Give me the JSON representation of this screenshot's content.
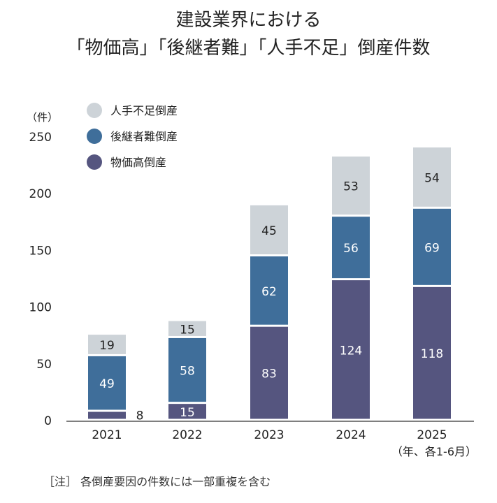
{
  "chart_data": {
    "type": "bar",
    "stacked": true,
    "title_line1": "建設業界における",
    "title_line2": "「物価高」「後継者難」「人手不足」倒産件数",
    "ylabel": "（件）",
    "xlabel": "（年、各1-6月）",
    "categories": [
      "2021",
      "2022",
      "2023",
      "2024",
      "2025"
    ],
    "ylim": [
      0,
      250
    ],
    "yticks": [
      0,
      50,
      100,
      150,
      200,
      250
    ],
    "grid": false,
    "legend": "top-left",
    "series": [
      {
        "name": "物価高倒産",
        "color": "#55557f",
        "values": [
          8,
          15,
          83,
          124,
          118
        ]
      },
      {
        "name": "後継者難倒産",
        "color": "#3f6e9a",
        "values": [
          49,
          58,
          62,
          56,
          69
        ]
      },
      {
        "name": "人手不足倒産",
        "color": "#cdd3d8",
        "values": [
          19,
          15,
          45,
          53,
          54
        ]
      }
    ],
    "legend_order": [
      "人手不足倒産",
      "後継者難倒産",
      "物価高倒産"
    ]
  },
  "note": "［注］ 各倒産要因の件数には一部重複を含む"
}
